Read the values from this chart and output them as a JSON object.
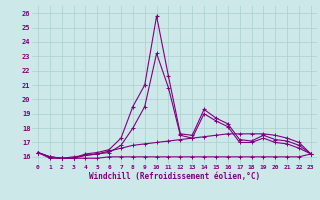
{
  "xlabel": "Windchill (Refroidissement éolien,°C)",
  "background_color": "#cce8e8",
  "line_color": "#800080",
  "xlim": [
    -0.5,
    23.5
  ],
  "ylim": [
    15.5,
    26.5
  ],
  "xticks": [
    0,
    1,
    2,
    3,
    4,
    5,
    6,
    7,
    8,
    9,
    10,
    11,
    12,
    13,
    14,
    15,
    16,
    17,
    18,
    19,
    20,
    21,
    22,
    23
  ],
  "yticks": [
    16,
    17,
    18,
    19,
    20,
    21,
    22,
    23,
    24,
    25,
    26
  ],
  "grid_color": "#aacfcf",
  "hours": [
    0,
    1,
    2,
    3,
    4,
    5,
    6,
    7,
    8,
    9,
    10,
    11,
    12,
    13,
    14,
    15,
    16,
    17,
    18,
    19,
    20,
    21,
    22,
    23
  ],
  "line1_main": [
    16.3,
    16.0,
    15.9,
    15.9,
    16.2,
    16.3,
    16.5,
    17.3,
    19.5,
    21.0,
    25.8,
    21.6,
    17.6,
    17.5,
    19.3,
    18.7,
    18.3,
    17.2,
    17.1,
    17.5,
    17.2,
    17.1,
    16.8,
    16.2
  ],
  "line2_low": [
    16.3,
    15.9,
    15.9,
    15.9,
    15.9,
    15.9,
    16.0,
    16.0,
    16.0,
    16.0,
    16.0,
    16.0,
    16.0,
    16.0,
    16.0,
    16.0,
    16.0,
    16.0,
    16.0,
    16.0,
    16.0,
    16.0,
    16.0,
    16.2
  ],
  "line3_mid": [
    16.3,
    16.0,
    15.9,
    16.0,
    16.1,
    16.2,
    16.4,
    16.6,
    16.8,
    16.9,
    17.0,
    17.1,
    17.2,
    17.3,
    17.4,
    17.5,
    17.6,
    17.6,
    17.6,
    17.6,
    17.5,
    17.3,
    17.0,
    16.2
  ],
  "line4_sub": [
    16.3,
    16.0,
    15.9,
    15.9,
    16.1,
    16.2,
    16.3,
    16.8,
    18.0,
    19.5,
    23.2,
    20.8,
    17.5,
    17.3,
    19.0,
    18.5,
    18.1,
    17.0,
    17.0,
    17.3,
    17.0,
    16.9,
    16.6,
    16.2
  ]
}
